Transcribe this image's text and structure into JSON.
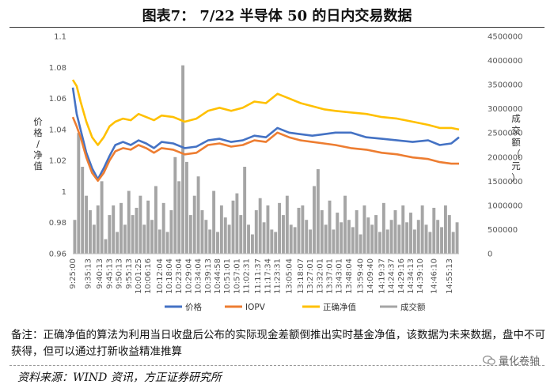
{
  "title": "图表7： 7/22 半导体 50 的日内交易数据",
  "note": "备注：正确净值的算法为利用当日收盘后公布的实际现金差额倒推出实时基金净值，该数据为未来数据，盘中不可获得，但可以通过打新收益精准推算",
  "source": "资料来源：WIND 资讯，方正证券研究所",
  "watermark": "量化卷轴",
  "chart_data": {
    "type": "line",
    "ylabel": "价格/净值",
    "y2label": "成交额（元）",
    "ylim": [
      0.96,
      1.1
    ],
    "y_ticks": [
      "1.1",
      "1.08",
      "1.06",
      "1.04",
      "1.02",
      "1",
      "0.98",
      "0.96"
    ],
    "y2lim": [
      0,
      4500000
    ],
    "y2_ticks": [
      "4500000",
      "4000000",
      "3500000",
      "3000000",
      "2500000",
      "2000000",
      "1500000",
      "1000000",
      "500000",
      "0"
    ],
    "x_ticks": [
      "9:25:00",
      "9:35:13",
      "9:40:13",
      "9:45:13",
      "9:50:13",
      "9:55:13",
      "10:01:25",
      "10:06:16",
      "10:12:04",
      "10:18:04",
      "10:23:04",
      "10:29:04",
      "10:34:04",
      "10:39:13",
      "10:44:58",
      "10:51:01",
      "10:57:01",
      "11:02:31",
      "11:11:37",
      "11:17:34",
      "11:23:31",
      "13:05:04",
      "13:18:07",
      "13:27:01",
      "13:32:01",
      "13:37:01",
      "13:43:01",
      "13:48:04",
      "13:59:40",
      "14:09:40",
      "14:19:37",
      "14:24:37",
      "14:29:16",
      "14:34:13",
      "14:39:10",
      "14:46:10",
      "14:55:13"
    ],
    "x_positions": [
      0,
      0.04,
      0.07,
      0.095,
      0.12,
      0.145,
      0.17,
      0.195,
      0.225,
      0.25,
      0.275,
      0.3,
      0.325,
      0.35,
      0.375,
      0.4,
      0.425,
      0.45,
      0.48,
      0.505,
      0.53,
      0.56,
      0.59,
      0.615,
      0.64,
      0.665,
      0.69,
      0.715,
      0.745,
      0.77,
      0.8,
      0.825,
      0.85,
      0.875,
      0.9,
      0.935,
      0.975
    ],
    "series": [
      {
        "name": "价格",
        "color": "#4472C4",
        "x": [
          0,
          0.01,
          0.02,
          0.035,
          0.05,
          0.065,
          0.08,
          0.095,
          0.11,
          0.13,
          0.15,
          0.17,
          0.19,
          0.21,
          0.23,
          0.26,
          0.29,
          0.32,
          0.35,
          0.38,
          0.41,
          0.44,
          0.47,
          0.5,
          0.53,
          0.56,
          0.59,
          0.62,
          0.65,
          0.68,
          0.72,
          0.76,
          0.8,
          0.84,
          0.88,
          0.92,
          0.95,
          0.98,
          1.0
        ],
        "y": [
          1.067,
          1.05,
          1.04,
          1.025,
          1.015,
          1.008,
          1.015,
          1.023,
          1.03,
          1.032,
          1.03,
          1.033,
          1.031,
          1.028,
          1.032,
          1.031,
          1.028,
          1.029,
          1.033,
          1.034,
          1.032,
          1.033,
          1.036,
          1.035,
          1.041,
          1.038,
          1.037,
          1.036,
          1.037,
          1.038,
          1.038,
          1.035,
          1.034,
          1.033,
          1.032,
          1.033,
          1.03,
          1.031,
          1.035
        ]
      },
      {
        "name": "IOPV",
        "color": "#ED7D31",
        "x": [
          0,
          0.01,
          0.02,
          0.035,
          0.05,
          0.065,
          0.08,
          0.095,
          0.11,
          0.13,
          0.15,
          0.17,
          0.19,
          0.21,
          0.23,
          0.26,
          0.29,
          0.32,
          0.35,
          0.38,
          0.41,
          0.44,
          0.47,
          0.5,
          0.53,
          0.56,
          0.59,
          0.62,
          0.65,
          0.68,
          0.72,
          0.76,
          0.8,
          0.84,
          0.88,
          0.92,
          0.95,
          0.98,
          1.0
        ],
        "y": [
          1.048,
          1.042,
          1.035,
          1.022,
          1.012,
          1.007,
          1.012,
          1.02,
          1.026,
          1.028,
          1.027,
          1.03,
          1.028,
          1.025,
          1.028,
          1.027,
          1.024,
          1.025,
          1.03,
          1.031,
          1.029,
          1.03,
          1.033,
          1.032,
          1.038,
          1.035,
          1.033,
          1.032,
          1.031,
          1.03,
          1.028,
          1.027,
          1.025,
          1.024,
          1.022,
          1.021,
          1.019,
          1.018,
          1.018
        ]
      },
      {
        "name": "正确净值",
        "color": "#FFC000",
        "x": [
          0,
          0.01,
          0.02,
          0.035,
          0.05,
          0.065,
          0.08,
          0.095,
          0.11,
          0.13,
          0.15,
          0.17,
          0.19,
          0.21,
          0.23,
          0.26,
          0.29,
          0.32,
          0.35,
          0.38,
          0.41,
          0.44,
          0.47,
          0.5,
          0.53,
          0.56,
          0.59,
          0.62,
          0.65,
          0.68,
          0.72,
          0.76,
          0.8,
          0.84,
          0.88,
          0.92,
          0.95,
          0.98,
          1.0
        ],
        "y": [
          1.072,
          1.068,
          1.058,
          1.045,
          1.035,
          1.03,
          1.035,
          1.042,
          1.045,
          1.047,
          1.046,
          1.05,
          1.048,
          1.046,
          1.049,
          1.048,
          1.045,
          1.047,
          1.052,
          1.054,
          1.052,
          1.054,
          1.058,
          1.057,
          1.063,
          1.06,
          1.057,
          1.055,
          1.053,
          1.052,
          1.051,
          1.05,
          1.048,
          1.047,
          1.045,
          1.043,
          1.041,
          1.041,
          1.04
        ]
      }
    ],
    "volume": {
      "name": "成交额",
      "color": "#A5A5A5",
      "values": [
        700000,
        2500000,
        1800000,
        1200000,
        900000,
        600000,
        1000000,
        1500000,
        300000,
        800000,
        1000000,
        450000,
        1050000,
        600000,
        1300000,
        800000,
        950000,
        1200000,
        600000,
        1100000,
        700000,
        1400000,
        500000,
        1050000,
        450000,
        900000,
        2000000,
        1500000,
        3900000,
        1900000,
        800000,
        1200000,
        1600000,
        900000,
        700000,
        500000,
        1300000,
        450000,
        1000000,
        750000,
        600000,
        1100000,
        1250000,
        800000,
        1800000,
        600000,
        400000,
        900000,
        1150000,
        650000,
        1000000,
        500000,
        450000,
        1050000,
        800000,
        1200000,
        600000,
        550000,
        950000,
        1000000,
        700000,
        500000,
        1400000,
        1750000,
        900000,
        600000,
        1100000,
        500000,
        850000,
        650000,
        1200000,
        700000,
        550000,
        900000,
        400000,
        1000000,
        750000,
        600000,
        800000,
        450000,
        1050000,
        500000,
        700000,
        900000,
        600000,
        1000000,
        650000,
        850000,
        500000,
        700000,
        1000000,
        600000,
        450000,
        950000,
        700000,
        550000,
        1000000,
        800000,
        450000,
        650000
      ]
    }
  },
  "legend": [
    {
      "label": "价格",
      "color": "#4472C4",
      "kind": "line"
    },
    {
      "label": "IOPV",
      "color": "#ED7D31",
      "kind": "line"
    },
    {
      "label": "正确净值",
      "color": "#FFC000",
      "kind": "line"
    },
    {
      "label": "成交额",
      "color": "#A5A5A5",
      "kind": "bar"
    }
  ]
}
